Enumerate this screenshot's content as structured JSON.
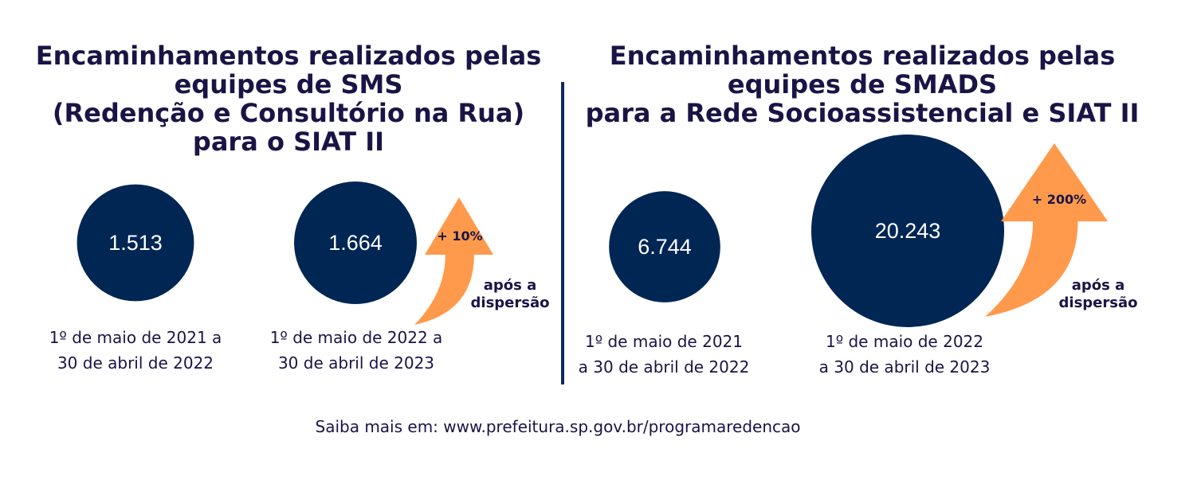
{
  "colors": {
    "bubble": "#002654",
    "arrow": "#ff9a4d",
    "text": "#1a1446",
    "divider": "#0e2a5c"
  },
  "chart_data": [
    {
      "type": "bubble",
      "title": "Encaminhamentos realizados pelas\nequipes de SMS\n(Redenção e Consultório na Rua)\npara o SIAT II",
      "categories": [
        "1º de maio de 2021 a\n30 de abril de 2022",
        "1º de maio de 2022 a\n30 de abril de 2023"
      ],
      "values": [
        1513,
        1664
      ],
      "value_labels": [
        "1.513",
        "1.664"
      ],
      "change_label": "+ 10%",
      "change_note": "após a\ndispersão"
    },
    {
      "type": "bubble",
      "title": "Encaminhamentos realizados pelas\nequipes de SMADS\npara a Rede Socioassistencial e SIAT II",
      "categories": [
        "1º de maio de 2021\na 30 de abril de 2022",
        "1º de maio de 2022\na 30 de abril de 2023"
      ],
      "values": [
        6744,
        20243
      ],
      "value_labels": [
        "6.744",
        "20.243"
      ],
      "change_label": "+ 200%",
      "change_note": "após a\ndispersão"
    }
  ],
  "footer": "Saiba mais em: www.prefeitura.sp.gov.br/programaredencao"
}
